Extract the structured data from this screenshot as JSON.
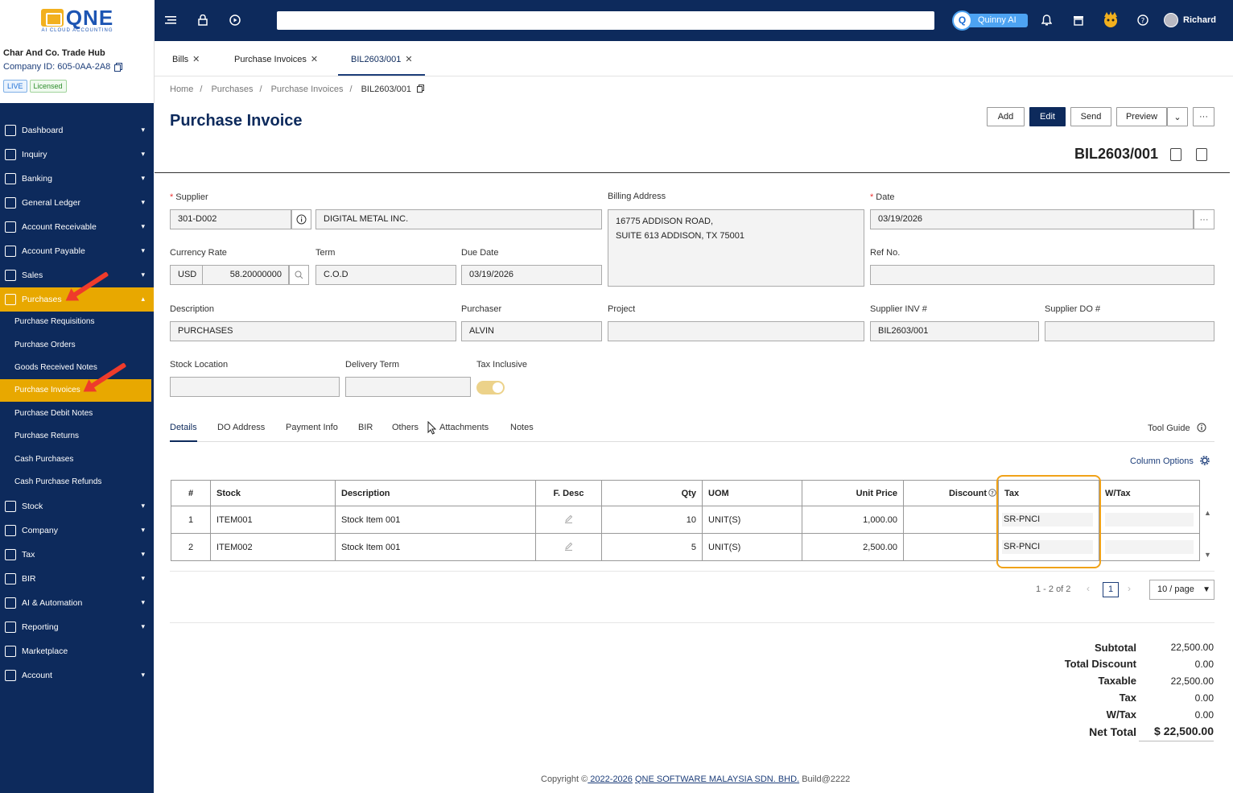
{
  "brand": {
    "logo_text": "QNE",
    "logo_sub": "AI CLOUD ACCOUNTING"
  },
  "header": {
    "quinny_label": "Quinny AI",
    "user_name": "Richard"
  },
  "company": {
    "name": "Char And Co. Trade Hub",
    "id_label": "Company ID: 605-0AA-2A8",
    "badge_live": "LIVE",
    "badge_licensed": "Licensed"
  },
  "sidebar": {
    "items": [
      {
        "label": "Dashboard"
      },
      {
        "label": "Inquiry"
      },
      {
        "label": "Banking"
      },
      {
        "label": "General Ledger"
      },
      {
        "label": "Account Receivable"
      },
      {
        "label": "Account Payable"
      },
      {
        "label": "Sales"
      },
      {
        "label": "Purchases"
      },
      {
        "label": "Stock"
      },
      {
        "label": "Company"
      },
      {
        "label": "Tax"
      },
      {
        "label": "BIR"
      },
      {
        "label": "AI & Automation"
      },
      {
        "label": "Reporting"
      },
      {
        "label": "Marketplace"
      },
      {
        "label": "Account"
      }
    ],
    "purchases_sub": [
      {
        "label": "Purchase Requisitions"
      },
      {
        "label": "Purchase Orders"
      },
      {
        "label": "Goods Received Notes"
      },
      {
        "label": "Purchase Invoices"
      },
      {
        "label": "Purchase Debit Notes"
      },
      {
        "label": "Purchase Returns"
      },
      {
        "label": "Cash Purchases"
      },
      {
        "label": "Cash Purchase Refunds"
      }
    ]
  },
  "tabs": [
    {
      "label": "Bills"
    },
    {
      "label": "Purchase Invoices"
    },
    {
      "label": "BIL2603/001"
    }
  ],
  "breadcrumb": {
    "home": "Home",
    "l1": "Purchases",
    "l2": "Purchase Invoices",
    "current": "BIL2603/001"
  },
  "page": {
    "title": "Purchase Invoice",
    "doc_no": "BIL2603/001"
  },
  "actions": {
    "add": "Add",
    "edit": "Edit",
    "send": "Send",
    "preview": "Preview",
    "more": "···"
  },
  "form": {
    "supplier_label": "Supplier",
    "supplier_code": "301-D002",
    "supplier_name": "DIGITAL METAL  INC.",
    "billing_label": "Billing Address",
    "billing_line1": "16775 ADDISON ROAD,",
    "billing_line2": "SUITE 613 ADDISON, TX 75001",
    "date_label": "Date",
    "date": "03/19/2026",
    "currency_label": "Currency Rate",
    "currency": "USD",
    "rate": "58.20000000",
    "term_label": "Term",
    "term": "C.O.D",
    "due_label": "Due Date",
    "due_date": "03/19/2026",
    "ref_label": "Ref No.",
    "ref": "",
    "desc_label": "Description",
    "description": "PURCHASES",
    "purchaser_label": "Purchaser",
    "purchaser": "ALVIN",
    "project_label": "Project",
    "project": "",
    "supinv_label": "Supplier INV #",
    "supinv": "BIL2603/001",
    "supdo_label": "Supplier DO #",
    "supdo": "",
    "stockloc_label": "Stock Location",
    "stockloc": "",
    "delterm_label": "Delivery Term",
    "delterm": "",
    "taxinc_label": "Tax Inclusive",
    "tax_inclusive": true
  },
  "detail_tabs": [
    {
      "label": "Details"
    },
    {
      "label": "DO Address"
    },
    {
      "label": "Payment Info"
    },
    {
      "label": "BIR"
    },
    {
      "label": "Others"
    },
    {
      "label": "Attachments"
    },
    {
      "label": "Notes"
    }
  ],
  "tool_guide": "Tool Guide",
  "column_options": "Column Options",
  "table": {
    "headers": {
      "no": "#",
      "stock": "Stock",
      "desc": "Description",
      "fdesc": "F. Desc",
      "qty": "Qty",
      "uom": "UOM",
      "price": "Unit Price",
      "disc": "Discount",
      "tax": "Tax",
      "wtax": "W/Tax"
    },
    "rows": [
      {
        "no": "1",
        "stock": "ITEM001",
        "desc": "Stock Item 001",
        "qty": "10",
        "uom": "UNIT(S)",
        "price": "1,000.00",
        "disc": "",
        "tax": "SR-PNCI",
        "wtax": ""
      },
      {
        "no": "2",
        "stock": "ITEM002",
        "desc": "Stock Item 001",
        "qty": "5",
        "uom": "UNIT(S)",
        "price": "2,500.00",
        "disc": "",
        "tax": "SR-PNCI",
        "wtax": ""
      }
    ]
  },
  "pagination": {
    "info": "1 - 2 of 2",
    "current": "1",
    "page_size": "10 / page"
  },
  "totals": {
    "subtotal_label": "Subtotal",
    "subtotal": "22,500.00",
    "discount_label": "Total Discount",
    "discount": "0.00",
    "taxable_label": "Taxable",
    "taxable": "22,500.00",
    "tax_label": "Tax",
    "tax": "0.00",
    "wtax_label": "W/Tax",
    "wtax": "0.00",
    "net_label": "Net Total",
    "net": "$ 22,500.00"
  },
  "footer": {
    "copyright": "Copyright ©",
    "years": " 2022-2026",
    "company": "QNE SOFTWARE MALAYSIA SDN. BHD.",
    "build": "Build@2222"
  },
  "colors": {
    "nav_bg": "#0d2a5c",
    "active": "#e8a800",
    "highlight": "#f0a218",
    "arrow": "#ee3b2b"
  }
}
